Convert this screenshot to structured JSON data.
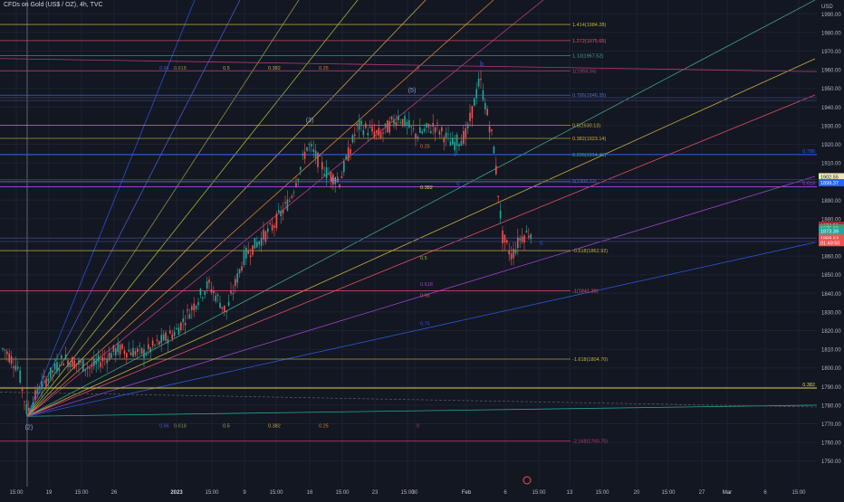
{
  "header": {
    "title": "CFDs on Gold (US$ / OZ), 4h, TVC"
  },
  "price_axis": {
    "currency": "USD",
    "ticks": [
      "1990.00",
      "1980.00",
      "1970.00",
      "1960.00",
      "1950.00",
      "1940.00",
      "1930.00",
      "1920.00",
      "1910.00",
      "1900.00",
      "1890.00",
      "1880.00",
      "1870.00",
      "1860.00",
      "1850.00",
      "1840.00",
      "1830.00",
      "1820.00",
      "1810.00",
      "1800.00",
      "1790.00",
      "1780.00",
      "1770.00",
      "1760.00",
      "1750.00"
    ]
  },
  "time_axis": {
    "ticks": [
      "15:00",
      "19",
      "15:00",
      "26",
      "2023",
      "15:00",
      "9",
      "15:00",
      "16",
      "15:00",
      "23",
      "15:00",
      "30",
      "Feb",
      "6",
      "15:00",
      "13",
      "15:00",
      "20",
      "15:00",
      "27",
      "Mar",
      "6",
      "15:00"
    ]
  },
  "price_badges": [
    {
      "text": "1902.55",
      "value": 1902.55,
      "bg": "#f0e6b4",
      "fg": "#1e222d"
    },
    {
      "text": "1899.37",
      "value": 1899.37,
      "bg": "#2962ff",
      "fg": "#ffffff"
    },
    {
      "text": "1876.50",
      "value": 1876.5,
      "bg": "#b22833",
      "fg": "#ffffff"
    },
    {
      "text": "1875.03",
      "value": 1875.03,
      "bg": "#3a9e72",
      "fg": "#ffffff"
    },
    {
      "text": "1873.39",
      "value": 1873.39,
      "bg": "#26a69a",
      "fg": "#ffffff"
    },
    {
      "text": "1869.63",
      "value": 1869.63,
      "bg": "#ef5350",
      "fg": "#ffffff"
    },
    {
      "text": "01:49:50",
      "value": 1867.2,
      "bg": "#ef5350",
      "fg": "#ffffff"
    }
  ],
  "fib_levels": [
    {
      "text": "1.414(1984.28)",
      "value": 1984.28,
      "color": "#c9b13c"
    },
    {
      "text": "1.272(1975.65)",
      "value": 1975.65,
      "color": "#e2556f"
    },
    {
      "text": "1.13(1967.52)",
      "value": 1967.52,
      "color": "#3ea58c"
    },
    {
      "text": "1(1959.34)",
      "value": 1959.34,
      "color": "#b03a7a"
    },
    {
      "text": "0.786(1946.35)",
      "value": 1946.35,
      "color": "#5668c7"
    },
    {
      "text": "0.5(1930.13)",
      "value": 1930.13,
      "color": "#c9b13c"
    },
    {
      "text": "0.382(1923.14)",
      "value": 1923.14,
      "color": "#c9b13c"
    },
    {
      "text": "0.236(1914.46)",
      "value": 1914.46,
      "color": "#3ea58c"
    },
    {
      "text": "0(1900.22)",
      "value": 1900.22,
      "color": "#5668c7"
    },
    {
      "text": "-0.618(1862.92)",
      "value": 1862.92,
      "color": "#c9b13c"
    },
    {
      "text": "-1(1841.39)",
      "value": 1841.39,
      "color": "#e2556f"
    },
    {
      "text": "-1.618(1804.70)",
      "value": 1804.7,
      "color": "#c9b13c"
    },
    {
      "text": "-2.168(1760.75)",
      "value": 1760.75,
      "color": "#b03a7a"
    }
  ],
  "line_labels": {
    "right_0786": "0.786",
    "right_0618": "0.618",
    "right_0382": "0.382"
  },
  "fan_labels_top": [
    "0.66",
    "0.618",
    "0.5",
    "0.382",
    "0.25",
    "0"
  ],
  "fan_labels_bottom": [
    "0.66",
    "0.618",
    "0.5",
    "0.382",
    "0.25",
    "0"
  ],
  "fan_labels_mid": [
    "0.25",
    "0.382",
    "0.5",
    "0.618",
    "0.66",
    "0.75"
  ],
  "wave_labels": [
    "(2)",
    "(3)",
    "(4)",
    "(5)",
    "b",
    "c",
    "c"
  ],
  "colors": {
    "background": "#131722",
    "grid": "#1e2230",
    "axis_text": "#b2b5be",
    "up": "#26a69a",
    "down": "#ef5350"
  }
}
